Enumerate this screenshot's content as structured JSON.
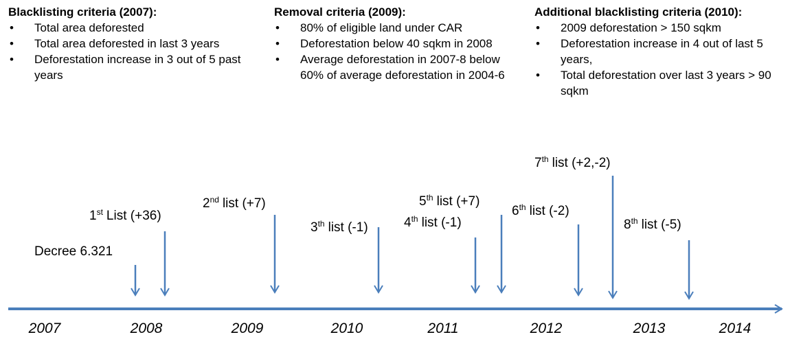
{
  "criteria": [
    {
      "title": "Blacklisting criteria (2007):",
      "items": [
        "Total area deforested",
        "Total area deforested in last 3 years",
        "Deforestation increase in 3 out of 5 past years"
      ]
    },
    {
      "title": "Removal criteria (2009):",
      "items": [
        "80% of eligible land under CAR",
        "Deforestation below 40 sqkm in 2008",
        "Average deforestation in 2007-8 below 60% of average deforestation in 2004-6"
      ]
    },
    {
      "title": "Additional blacklisting criteria (2010):",
      "items": [
        "2009 deforestation > 150 sqkm",
        "Deforestation increase in 4 out of last 5 years,",
        "Total deforestation over last 3 years > 90 sqkm"
      ]
    }
  ],
  "events": [
    {
      "text": "Decree 6.321"
    },
    {
      "num": "1",
      "sup": "st",
      "text": "List (+36)"
    },
    {
      "num": "2",
      "sup": "nd",
      "text": "list (+7)"
    },
    {
      "num": "3",
      "sup": "th",
      "text": "list (-1)"
    },
    {
      "num": "4",
      "sup": "th",
      "text": "list (-1)"
    },
    {
      "num": "5",
      "sup": "th",
      "text": "list (+7)"
    },
    {
      "num": "6",
      "sup": "th",
      "text": "list (-2)"
    },
    {
      "num": "7",
      "sup": "th",
      "text": "list (+2,-2)"
    },
    {
      "num": "8",
      "sup": "th",
      "text": "list (-5)"
    }
  ],
  "years": [
    "2007",
    "2008",
    "2009",
    "2010",
    "2011",
    "2012",
    "2013",
    "2014"
  ]
}
